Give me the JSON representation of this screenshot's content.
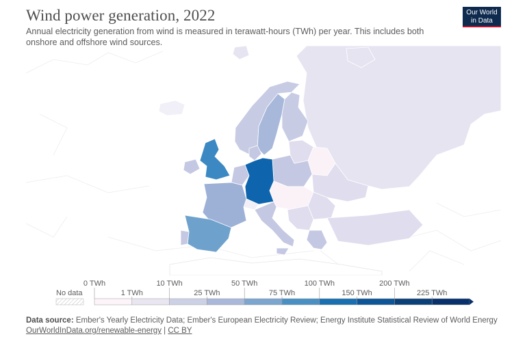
{
  "header": {
    "title": "Wind power generation, 2022",
    "subtitle": "Annual electricity generation from wind is measured in terawatt-hours (TWh) per year. This includes both onshore and offshore wind sources."
  },
  "logo": {
    "line1": "Our World",
    "line2": "in Data"
  },
  "legend": {
    "no_data_label": "No data",
    "upper_ticks": [
      "0 TWh",
      "10 TWh",
      "50 TWh",
      "100 TWh",
      "200 TWh"
    ],
    "lower_ticks": [
      "1 TWh",
      "25 TWh",
      "75 TWh",
      "150 TWh",
      "225 TWh"
    ],
    "colors": [
      "#fdf4f9",
      "#e9e6f2",
      "#cdd1e6",
      "#aab8d9",
      "#7ca5cf",
      "#4a8fc3",
      "#1a6fb0",
      "#0d5596",
      "#0a3f78",
      "#08306b"
    ]
  },
  "map_colors": {
    "russia": "#e6e4f1",
    "germany": "#0e64ad",
    "uk": "#3b88c3",
    "spain": "#6ea2cd",
    "france": "#9db0d6",
    "sweden": "#a7b8da",
    "norway": "#c7cbe4",
    "mid": "#c4c8e2",
    "light": "#e0ddee",
    "vlight": "#f1eff7",
    "pink": "#fbf2f7",
    "no_data": "#ffffff"
  },
  "footer": {
    "source_label": "Data source:",
    "source_text": " Ember's Yearly Electricity Data; Ember's European Electricity Review; Energy Institute Statistical Review of World Energy",
    "url": "OurWorldInData.org/renewable-energy",
    "sep": " | ",
    "license": "CC BY"
  }
}
